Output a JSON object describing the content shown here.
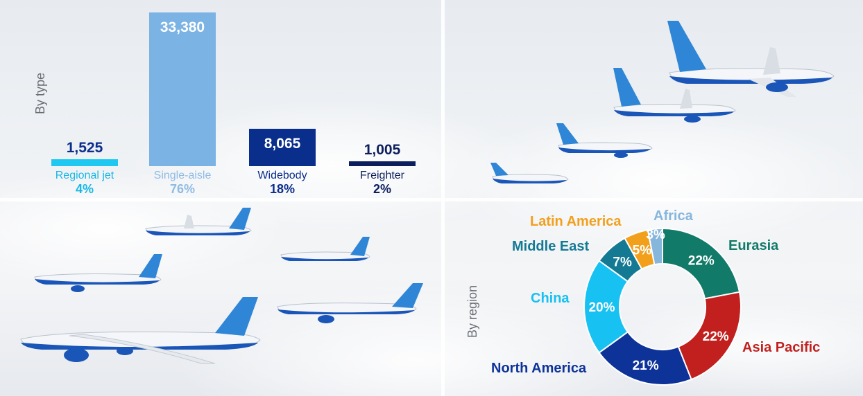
{
  "chart_data": [
    {
      "type": "bar",
      "axis_title": "By type",
      "categories": [
        "Regional jet",
        "Single-aisle",
        "Widebody",
        "Freighter"
      ],
      "values": [
        1525,
        33380,
        8065,
        1005
      ],
      "value_labels": [
        "1,525",
        "33,380",
        "8,065",
        "1,005"
      ],
      "percent_labels": [
        "4%",
        "76%",
        "18%",
        "2%"
      ],
      "colors": [
        "#1ec8f0",
        "#7ab3e4",
        "#0a2e8c",
        "#0c1f5c"
      ],
      "label_colors": [
        "#17b8e6",
        "#8fbbe4",
        "#0a2e8c",
        "#0c1f5c"
      ],
      "value_text_colors": [
        "#0a2e8c",
        "#ffffff",
        "#ffffff",
        "#0c1f5c"
      ]
    },
    {
      "type": "pie",
      "axis_title": "By region",
      "labels": [
        "Eurasia",
        "Asia Pacific",
        "North America",
        "China",
        "Middle East",
        "Latin America",
        "Africa"
      ],
      "values": [
        22,
        22,
        21,
        20,
        7,
        5,
        3
      ],
      "percent_labels": [
        "22%",
        "22%",
        "21%",
        "20%",
        "7%",
        "5%",
        "3%"
      ],
      "colors": [
        "#127a69",
        "#c1201e",
        "#0d3399",
        "#17c1f2",
        "#147a94",
        "#f2a01b",
        "#86b6dc"
      ]
    }
  ],
  "icons": {
    "planes_top_right": "737-max-family-planes",
    "planes_bottom_left": "787-777x-widebody-planes"
  }
}
